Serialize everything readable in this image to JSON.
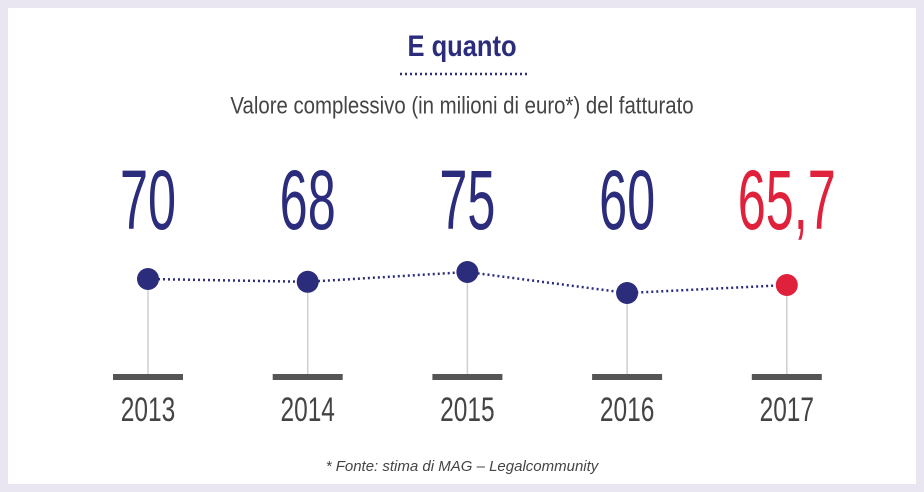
{
  "chart_data": {
    "type": "line",
    "title": "E quanto",
    "subtitle": "Valore complessivo (in milioni di euro*) del fatturato",
    "categories": [
      "2013",
      "2014",
      "2015",
      "2016",
      "2017"
    ],
    "values": [
      70,
      68,
      75,
      60,
      65.7
    ],
    "value_labels": [
      "70",
      "68",
      "75",
      "60",
      "65,7"
    ],
    "colors": [
      "#2b2c7c",
      "#2b2c7c",
      "#2b2c7c",
      "#2b2c7c",
      "#e0213b"
    ],
    "line_color": "#2b2c7c",
    "source": "* Fonte: stima di MAG – Legalcommunity"
  }
}
